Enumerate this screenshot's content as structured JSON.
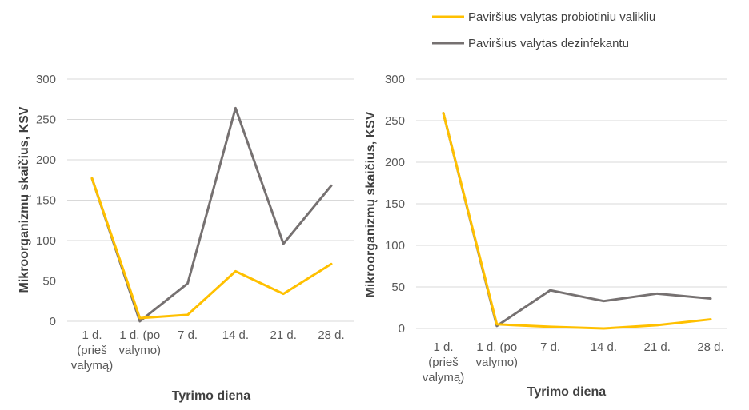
{
  "legend": {
    "placement": "top-right",
    "items": [
      {
        "name": "Paviršius valytas probiotiniu valikliu",
        "color": "#FFC000"
      },
      {
        "name": "Paviršius valytas dezinfekantu",
        "color": "#767171"
      }
    ]
  },
  "chart_data": [
    {
      "type": "line",
      "ylim": [
        0,
        300
      ],
      "yticks": [
        0,
        50,
        100,
        150,
        200,
        250,
        300
      ],
      "grid": true,
      "ylabel": "Mikroorganizmų skaičius, KSV",
      "xlabel": "Tyrimo diena",
      "categories": [
        [
          "1 d.",
          "(prieš",
          "valymą)"
        ],
        [
          "1 d. (po",
          "valymo)"
        ],
        [
          "7 d."
        ],
        [
          "14 d."
        ],
        [
          "21 d."
        ],
        [
          "28 d."
        ]
      ],
      "series": [
        {
          "name": "Paviršius valytas probiotiniu valikliu",
          "color": "#FFC000",
          "values": [
            177,
            4,
            8,
            62,
            34,
            71
          ]
        },
        {
          "name": "Paviršius valytas dezinfekantu",
          "color": "#767171",
          "values": [
            177,
            0,
            47,
            264,
            96,
            168
          ]
        }
      ]
    },
    {
      "type": "line",
      "ylim": [
        0,
        300
      ],
      "yticks": [
        0,
        50,
        100,
        150,
        200,
        250,
        300
      ],
      "grid": true,
      "ylabel": "Mikroorganizmų skaičius, KSV",
      "xlabel": "Tyrimo diena",
      "categories": [
        [
          "1 d.",
          "(prieš",
          "valymą)"
        ],
        [
          "1 d. (po",
          "valymo)"
        ],
        [
          "7 d."
        ],
        [
          "14 d."
        ],
        [
          "21 d."
        ],
        [
          "28 d."
        ]
      ],
      "series": [
        {
          "name": "Paviršius valytas probiotiniu valikliu",
          "color": "#FFC000",
          "values": [
            259,
            5,
            2,
            0,
            4,
            11
          ]
        },
        {
          "name": "Paviršius valytas dezinfekantu",
          "color": "#767171",
          "values": [
            259,
            3,
            46,
            33,
            42,
            36
          ]
        }
      ]
    }
  ]
}
